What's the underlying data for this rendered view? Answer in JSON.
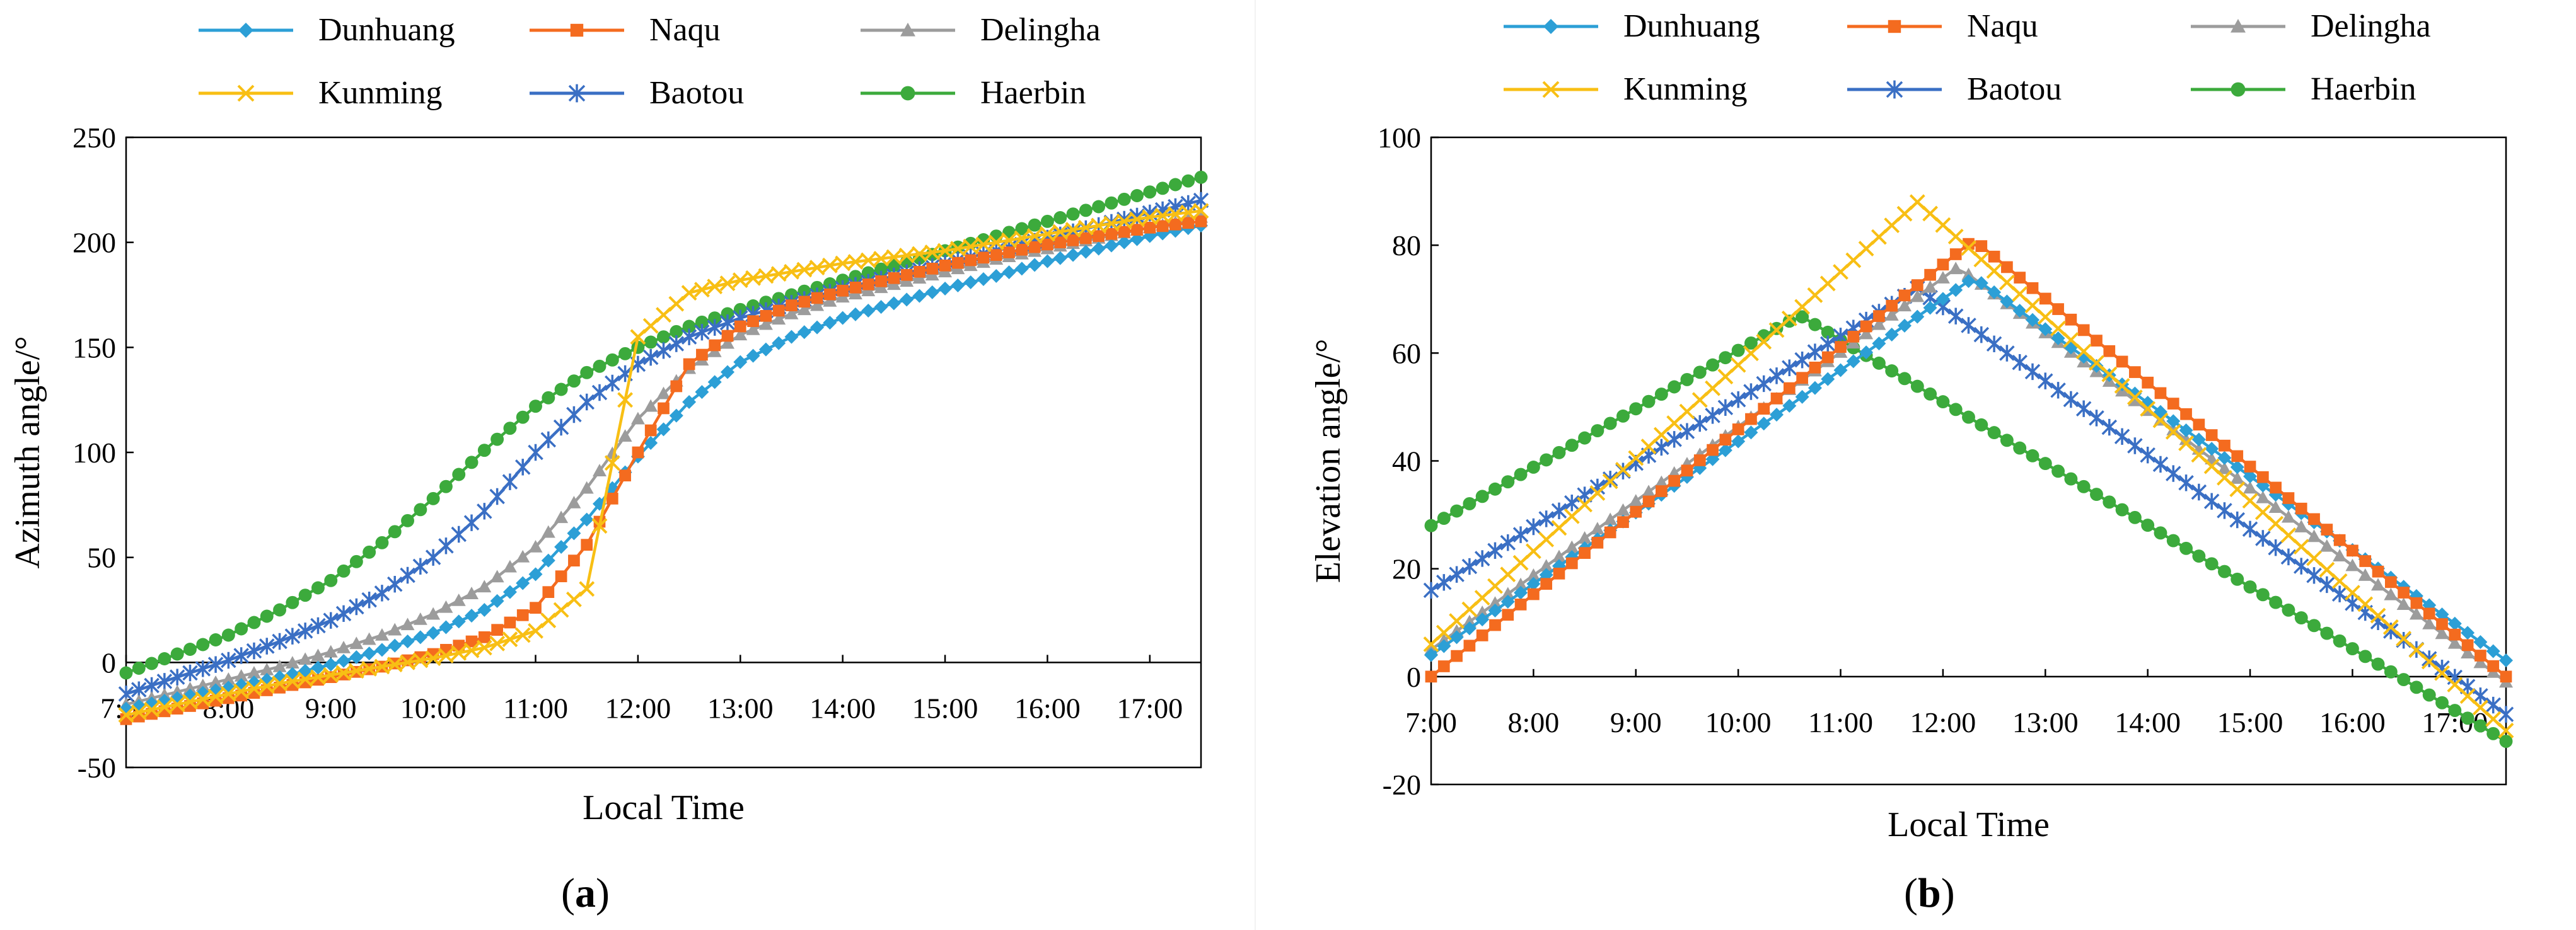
{
  "figure": {
    "panels": [
      {
        "label_open": "(",
        "label_letter": "a",
        "label_close": ")"
      },
      {
        "label_open": "(",
        "label_letter": "b",
        "label_close": ")"
      }
    ]
  },
  "colors": {
    "Dunhuang": "#2c9fd6",
    "Naqu": "#f46b1f",
    "Delingha": "#9c9c9c",
    "Kunming": "#f8bf14",
    "Baotou": "#3a6fc4",
    "Haerbin": "#3caa3c"
  },
  "chart_data": [
    {
      "type": "line",
      "title": "",
      "xlabel": "Local Time",
      "ylabel": "Azimuth angle/°",
      "x_ticks": [
        "7:00",
        "8:00",
        "9:00",
        "10:00",
        "11:00",
        "12:00",
        "13:00",
        "14:00",
        "15:00",
        "16:00",
        "17:00"
      ],
      "y_ticks": [
        "-50",
        "0",
        "50",
        "100",
        "150",
        "200",
        "250"
      ],
      "xlim": [
        7,
        17.5
      ],
      "ylim": [
        -50,
        250
      ],
      "x": [
        7,
        7.5,
        8,
        8.5,
        9,
        9.5,
        10,
        10.5,
        11,
        11.5,
        12,
        12.5,
        13,
        13.5,
        14,
        14.5,
        15,
        15.5,
        16,
        16.5,
        17,
        17.5
      ],
      "legend_position": "top",
      "series": [
        {
          "name": "Dunhuang",
          "marker": "diamond",
          "values": [
            -22,
            -17,
            -12,
            -7,
            -1,
            6,
            14,
            25,
            42,
            68,
            98,
            124,
            143,
            155,
            164,
            171,
            178,
            184,
            191,
            197,
            203,
            208
          ]
        },
        {
          "name": "Naqu",
          "marker": "square",
          "values": [
            -27,
            -22,
            -17,
            -12,
            -7,
            -2,
            4,
            12,
            26,
            56,
            100,
            142,
            160,
            170,
            177,
            183,
            189,
            194,
            199,
            203,
            207,
            210
          ]
        },
        {
          "name": "Delingha",
          "marker": "triangle",
          "values": [
            -20,
            -14,
            -8,
            -2,
            5,
            13,
            23,
            36,
            55,
            83,
            116,
            140,
            156,
            166,
            174,
            180,
            186,
            192,
            197,
            202,
            207,
            212
          ]
        },
        {
          "name": "Kunming",
          "marker": "x",
          "values": [
            -25,
            -20,
            -15,
            -10,
            -6,
            -2,
            2,
            7,
            15,
            35,
            155,
            176,
            182,
            186,
            190,
            193,
            196,
            200,
            204,
            208,
            212,
            215
          ]
        },
        {
          "name": "Baotou",
          "marker": "asterisk",
          "values": [
            -15,
            -7,
            1,
            10,
            20,
            33,
            50,
            72,
            100,
            124,
            142,
            155,
            164,
            171,
            178,
            184,
            190,
            196,
            202,
            208,
            214,
            220
          ]
        },
        {
          "name": "Haerbin",
          "marker": "circle",
          "values": [
            -5,
            4,
            13,
            25,
            39,
            57,
            78,
            101,
            122,
            138,
            150,
            160,
            168,
            175,
            182,
            189,
            196,
            203,
            210,
            217,
            224,
            231
          ]
        }
      ]
    },
    {
      "type": "line",
      "title": "",
      "xlabel": "Local Time",
      "ylabel": "Elevation angle/°",
      "x_ticks": [
        "7:00",
        "8:00",
        "9:00",
        "10:00",
        "11:00",
        "12:00",
        "13:00",
        "14:00",
        "15:00",
        "16:00",
        "17:00"
      ],
      "y_ticks": [
        "-20",
        "0",
        "20",
        "40",
        "60",
        "80",
        "100"
      ],
      "xlim": [
        7,
        17.5
      ],
      "ylim": [
        -20,
        100
      ],
      "legend_position": "top",
      "series": [
        {
          "name": "Dunhuang",
          "marker": "diamond",
          "peak_time": 12.3,
          "peak_value": 74,
          "start_value": 4,
          "end_value": 3
        },
        {
          "name": "Naqu",
          "marker": "square",
          "peak_time": 12.3,
          "peak_value": 81,
          "start_value": 0,
          "end_value": 0
        },
        {
          "name": "Delingha",
          "marker": "triangle",
          "peak_time": 12.15,
          "peak_value": 76,
          "start_value": 5,
          "end_value": -1
        },
        {
          "name": "Kunming",
          "marker": "x",
          "peak_time": 11.75,
          "peak_value": 88,
          "start_value": 6,
          "end_value": -10
        },
        {
          "name": "Baotou",
          "marker": "asterisk",
          "peak_time": 11.75,
          "peak_value": 72,
          "start_value": 16,
          "end_value": -7
        },
        {
          "name": "Haerbin",
          "marker": "circle",
          "peak_time": 10.6,
          "peak_value": 67,
          "start_value": 28,
          "end_value": -12
        }
      ]
    }
  ]
}
